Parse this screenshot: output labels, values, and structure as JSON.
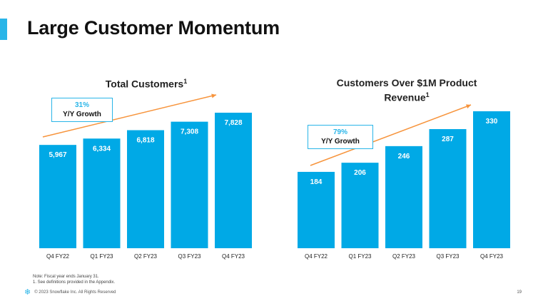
{
  "slide": {
    "title": "Large Customer Momentum",
    "accent_color": "#29b5e8",
    "bar_color": "#00a9e6",
    "trend_color": "#f7943c",
    "footnote_line1": "Note: Fiscal year ends January 31.",
    "footnote_line2": "1.  See definitions provided in the Appendix.",
    "copyright": "© 2023 Snowflake Inc. All Rights Reserved",
    "page_number": "19",
    "logo_icon": "snowflake-icon"
  },
  "chart_data": [
    {
      "type": "bar",
      "title": "Total Customers",
      "title_superscript": "1",
      "categories": [
        "Q4 FY22",
        "Q1 FY23",
        "Q2 FY23",
        "Q3 FY23",
        "Q4 FY23"
      ],
      "values": [
        5967,
        6334,
        6818,
        7308,
        7828
      ],
      "value_labels": [
        "5,967",
        "6,334",
        "6,818",
        "7,308",
        "7,828"
      ],
      "ylim": [
        0,
        7828
      ],
      "callout": {
        "percent": "31%",
        "label": "Y/Y Growth"
      },
      "trend_arrow": true,
      "grid": false,
      "legend": "none"
    },
    {
      "type": "bar",
      "title": "Customers Over $1M Product Revenue",
      "title_line1": "Customers Over $1M Product",
      "title_line2": "Revenue",
      "title_superscript": "1",
      "categories": [
        "Q4 FY22",
        "Q1 FY23",
        "Q2 FY23",
        "Q3 FY23",
        "Q4 FY23"
      ],
      "values": [
        184,
        206,
        246,
        287,
        330
      ],
      "value_labels": [
        "184",
        "206",
        "246",
        "287",
        "330"
      ],
      "ylim": [
        0,
        330
      ],
      "callout": {
        "percent": "79%",
        "label": "Y/Y Growth"
      },
      "trend_arrow": true,
      "grid": false,
      "legend": "none"
    }
  ]
}
